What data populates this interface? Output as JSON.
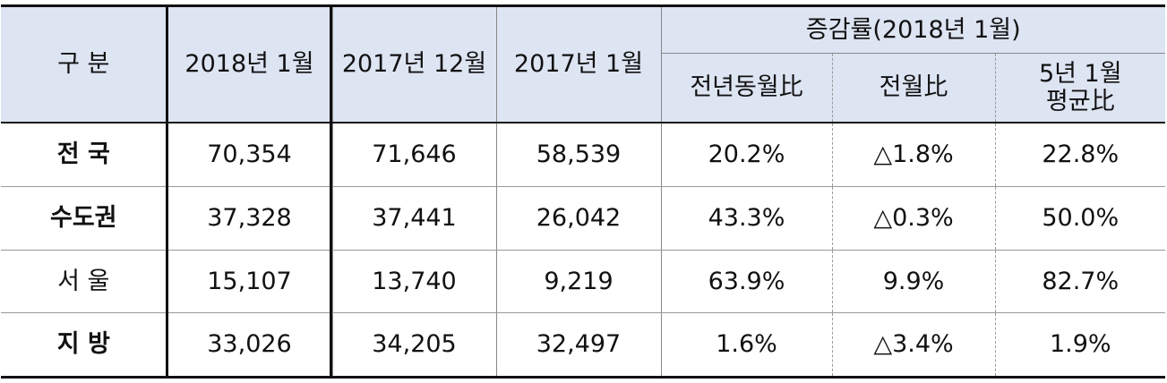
{
  "table": {
    "group_header": "증감률(2018년 1월)",
    "columns": [
      "구 분",
      "2018년 1월",
      "2017년 12월",
      "2017년 1월",
      "전년동월比",
      "전월比",
      "5년 1월\n평균比"
    ],
    "rows": [
      [
        "전 국",
        "70,354",
        "71,646",
        "58,539",
        "20.2%",
        "△1.8%",
        "22.8%"
      ],
      [
        "수도권",
        "37,328",
        "37,441",
        "26,042",
        "43.3%",
        "△0.3%",
        "50.0%"
      ],
      [
        "서 울",
        "15,107",
        "13,740",
        "9,219",
        "63.9%",
        "9.9%",
        "82.7%"
      ],
      [
        "지 방",
        "33,026",
        "34,205",
        "32,497",
        "1.6%",
        "△3.4%",
        "1.9%"
      ]
    ]
  }
}
